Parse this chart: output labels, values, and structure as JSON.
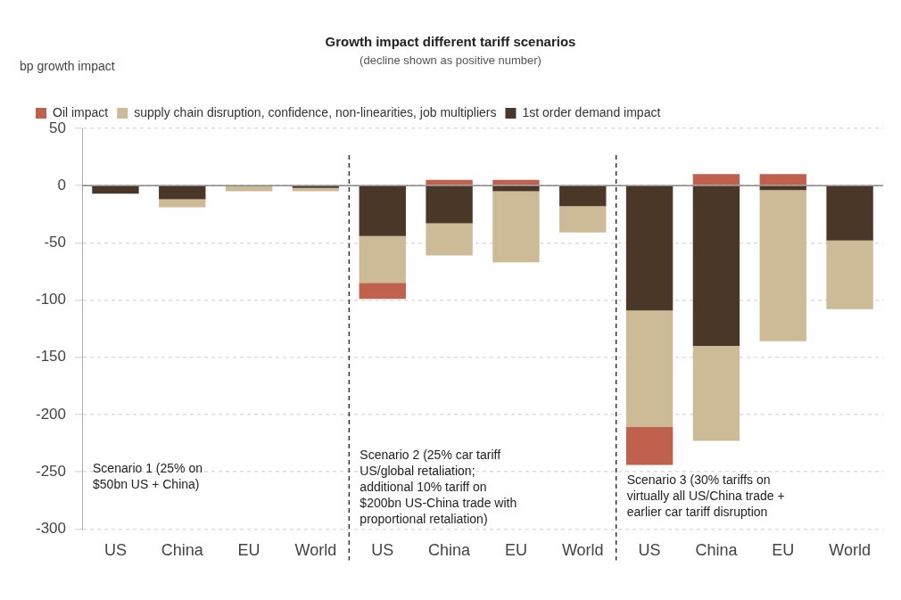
{
  "chart_data": {
    "type": "bar",
    "title": "Growth impact different tariff scenarios",
    "subtitle": "(decline shown as positive number)",
    "ylabel": "bp growth impact",
    "categories": [
      "US",
      "China",
      "EU",
      "World",
      "US",
      "China",
      "EU",
      "World",
      "US",
      "China",
      "EU",
      "World"
    ],
    "stacked": true,
    "series": [
      {
        "name": "1st order demand impact",
        "color": "#4a3728",
        "values": [
          -7,
          -12,
          0,
          -2,
          -44,
          -33,
          -5,
          -18,
          -109,
          -140,
          -4,
          -48
        ]
      },
      {
        "name": "supply chain disruption, confidence, non-linearities, job multipliers",
        "color": "#cdbb98",
        "values": [
          0,
          -7,
          -5,
          -3,
          -41,
          -28,
          -62,
          -23,
          -102,
          -83,
          -132,
          -60
        ]
      },
      {
        "name": "Oil impact",
        "color": "#c0614d",
        "values": [
          0,
          0,
          0,
          0,
          -14,
          5,
          5,
          0,
          -33,
          10,
          10,
          0
        ]
      }
    ],
    "ylim": [
      -300,
      50
    ],
    "yticks": [
      50,
      0,
      -50,
      -100,
      -150,
      -200,
      -250,
      -300
    ],
    "grid": "y",
    "legend": "top left",
    "ref_lines": [
      {
        "axis": "y",
        "value": 0,
        "color": "#888888",
        "line_style": "solid"
      }
    ],
    "annotations": [
      "Scenario 1 (25% on\n$50bn US + China)",
      "Scenario 2 (25% car tariff\nUS/global retaliation;\nadditional 10% tariff on\n$200bn US-China trade with\nproportional retaliation)",
      "Scenario 3 (30% tariffs on\nvirtually all US/China trade +\nearlier car tariff disruption"
    ]
  }
}
